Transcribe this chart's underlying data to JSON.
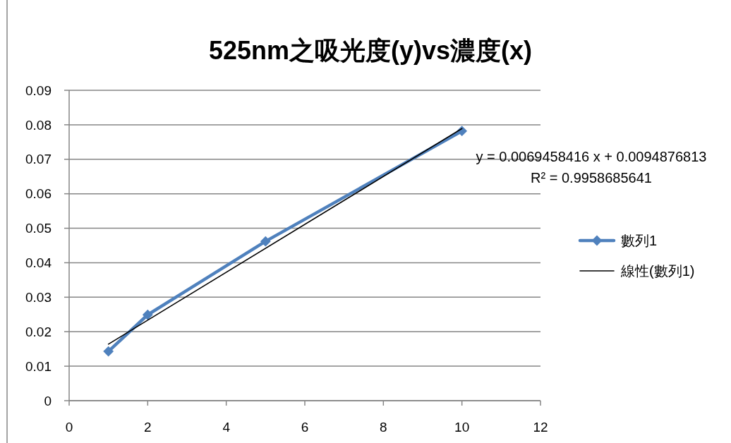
{
  "chart_data": {
    "type": "line",
    "title": "525nm之吸光度(y)vs濃度(x)",
    "x": [
      1,
      2,
      5,
      10
    ],
    "series": [
      {
        "name": "數列1",
        "color": "#4f81bd",
        "values": [
          0.0143,
          0.0249,
          0.0462,
          0.0782
        ]
      },
      {
        "name": "線性(數列1)",
        "type": "line",
        "color": "#000000",
        "x": [
          1,
          10
        ],
        "values": [
          0.0164,
          0.0789
        ],
        "marker": "none"
      }
    ],
    "xlim": [
      0,
      12
    ],
    "xticks": [
      0,
      2,
      4,
      6,
      8,
      10,
      12
    ],
    "ylim": [
      0,
      0.09
    ],
    "yticks": [
      0,
      0.01,
      0.02,
      0.03,
      0.04,
      0.05,
      0.06,
      0.07,
      0.08,
      0.09
    ],
    "grid": "y",
    "legend": "right",
    "marker": "diamond",
    "annotations": [
      "y = 0.0069458416 x + 0.0094876813",
      "R² = 0.9958685641"
    ]
  }
}
